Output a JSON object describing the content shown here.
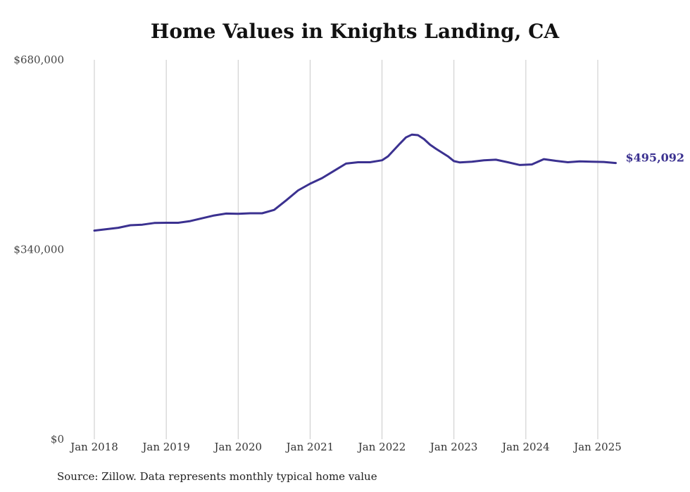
{
  "colors": {
    "line": "#3b3190",
    "grid": "#c8c8c8",
    "text": "#222222"
  },
  "source_note": "Source: Zillow. Data represents monthly typical home value",
  "chart_data": {
    "type": "line",
    "title": "Home Values in Knights Landing, CA",
    "xlabel": "",
    "ylabel": "",
    "ylim": [
      0,
      680000
    ],
    "y_ticks": [
      {
        "value": 0,
        "label": "$0"
      },
      {
        "value": 340000,
        "label": "$340,000"
      },
      {
        "value": 680000,
        "label": "$680,000"
      }
    ],
    "x_range": [
      "2018-01",
      "2025-04"
    ],
    "x_ticks": [
      {
        "date": "2018-01",
        "label": "Jan 2018"
      },
      {
        "date": "2019-01",
        "label": "Jan 2019"
      },
      {
        "date": "2020-01",
        "label": "Jan 2020"
      },
      {
        "date": "2021-01",
        "label": "Jan 2021"
      },
      {
        "date": "2022-01",
        "label": "Jan 2022"
      },
      {
        "date": "2023-01",
        "label": "Jan 2023"
      },
      {
        "date": "2024-01",
        "label": "Jan 2024"
      },
      {
        "date": "2025-01",
        "label": "Jan 2025"
      }
    ],
    "grid": {
      "vertical": true,
      "horizontal": false
    },
    "end_label": "$495,092",
    "series": [
      {
        "points": [
          [
            "2018-01",
            374000
          ],
          [
            "2018-03",
            376500
          ],
          [
            "2018-05",
            379000
          ],
          [
            "2018-07",
            383500
          ],
          [
            "2018-09",
            384500
          ],
          [
            "2018-11",
            387500
          ],
          [
            "2019-01",
            388000
          ],
          [
            "2019-03",
            388000
          ],
          [
            "2019-05",
            391000
          ],
          [
            "2019-07",
            396000
          ],
          [
            "2019-09",
            401000
          ],
          [
            "2019-11",
            404500
          ],
          [
            "2020-01",
            404000
          ],
          [
            "2020-03",
            405000
          ],
          [
            "2020-05",
            405000
          ],
          [
            "2020-07",
            411000
          ],
          [
            "2020-09",
            428000
          ],
          [
            "2020-11",
            446000
          ],
          [
            "2021-01",
            458000
          ],
          [
            "2021-03",
            468000
          ],
          [
            "2021-05",
            481000
          ],
          [
            "2021-07",
            494000
          ],
          [
            "2021-09",
            496500
          ],
          [
            "2021-11",
            496500
          ],
          [
            "2022-01",
            500000
          ],
          [
            "2022-02",
            507000
          ],
          [
            "2022-04",
            530000
          ],
          [
            "2022-05",
            541000
          ],
          [
            "2022-06",
            546000
          ],
          [
            "2022-07",
            545000
          ],
          [
            "2022-08",
            538000
          ],
          [
            "2022-09",
            528000
          ],
          [
            "2022-10",
            520500
          ],
          [
            "2022-12",
            507000
          ],
          [
            "2023-01",
            498500
          ],
          [
            "2023-02",
            496000
          ],
          [
            "2023-04",
            497500
          ],
          [
            "2023-06",
            500000
          ],
          [
            "2023-08",
            501000
          ],
          [
            "2023-10",
            496500
          ],
          [
            "2023-12",
            491500
          ],
          [
            "2024-02",
            492500
          ],
          [
            "2024-04",
            502000
          ],
          [
            "2024-06",
            499000
          ],
          [
            "2024-08",
            496500
          ],
          [
            "2024-10",
            498000
          ],
          [
            "2024-12",
            497500
          ],
          [
            "2025-02",
            497000
          ],
          [
            "2025-04",
            495092
          ]
        ]
      }
    ]
  }
}
